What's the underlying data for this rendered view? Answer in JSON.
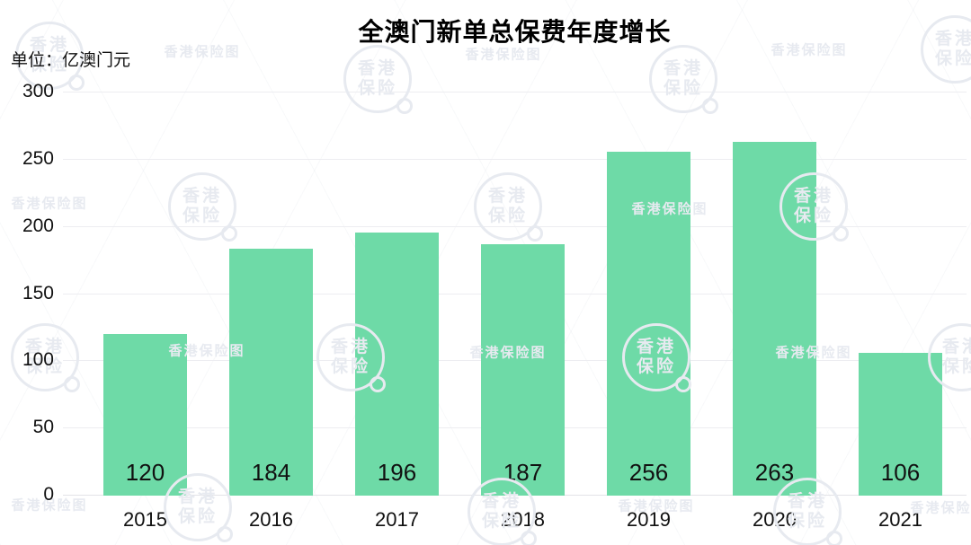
{
  "title": "全澳门新单总保费年度增长",
  "unit_label": "单位：亿澳门元",
  "watermark": {
    "stamp_line1": "香港",
    "stamp_line2": "保险",
    "text_mark": "香港保险图"
  },
  "colors": {
    "bar": "#6edaa7",
    "value_label": "#111111",
    "grid": "#ededf1",
    "axis_text": "#111111",
    "watermark": "#e7eaf0"
  },
  "chart_data": {
    "type": "bar",
    "categories": [
      "2015",
      "2016",
      "2017",
      "2018",
      "2019",
      "2020",
      "2021"
    ],
    "values": [
      120,
      184,
      196,
      187,
      256,
      263,
      106
    ],
    "title": "全澳门新单总保费年度增长",
    "xlabel": "",
    "ylabel": "亿澳门元",
    "ylim": [
      0,
      300
    ],
    "yticks": [
      0,
      50,
      100,
      150,
      200,
      250,
      300
    ],
    "grid": true,
    "legend": false,
    "value_labels_shown": true
  }
}
